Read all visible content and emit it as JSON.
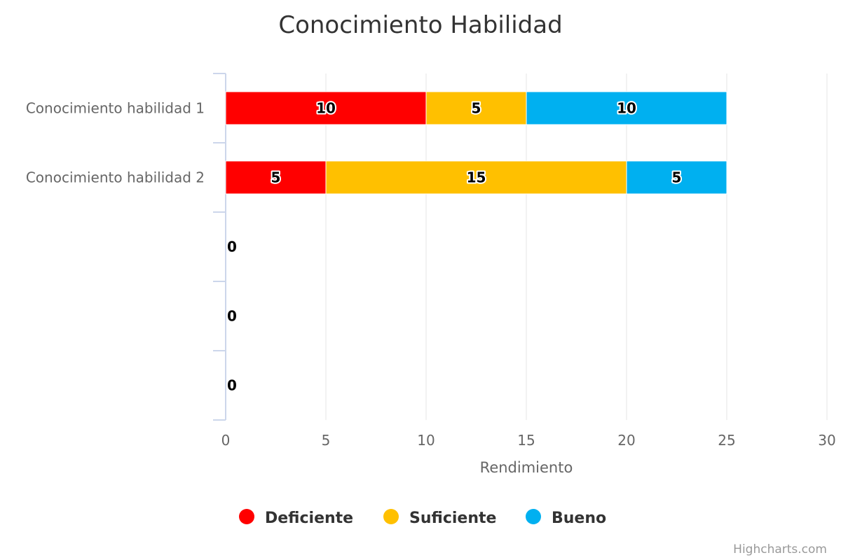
{
  "chart_data": {
    "type": "bar",
    "orientation": "horizontal",
    "stacking": "normal",
    "title": "Conocimiento Habilidad",
    "categories": [
      "Conocimiento habilidad 1",
      "Conocimiento habilidad 2",
      "",
      "",
      ""
    ],
    "series": [
      {
        "name": "Deficiente",
        "color": "#ff0000",
        "values": [
          10,
          5,
          0,
          0,
          0
        ]
      },
      {
        "name": "Suficiente",
        "color": "#ffc000",
        "values": [
          5,
          15,
          0,
          0,
          0
        ]
      },
      {
        "name": "Bueno",
        "color": "#00b0f0",
        "values": [
          10,
          5,
          0,
          0,
          0
        ]
      }
    ],
    "xlabel": "Rendimiento",
    "xlim": [
      0,
      30
    ],
    "xticks": [
      0,
      5,
      10,
      15,
      20,
      25,
      30
    ],
    "grid": true,
    "legend_position": "bottom-center",
    "data_labels": true
  },
  "credits": "Highcharts.com"
}
